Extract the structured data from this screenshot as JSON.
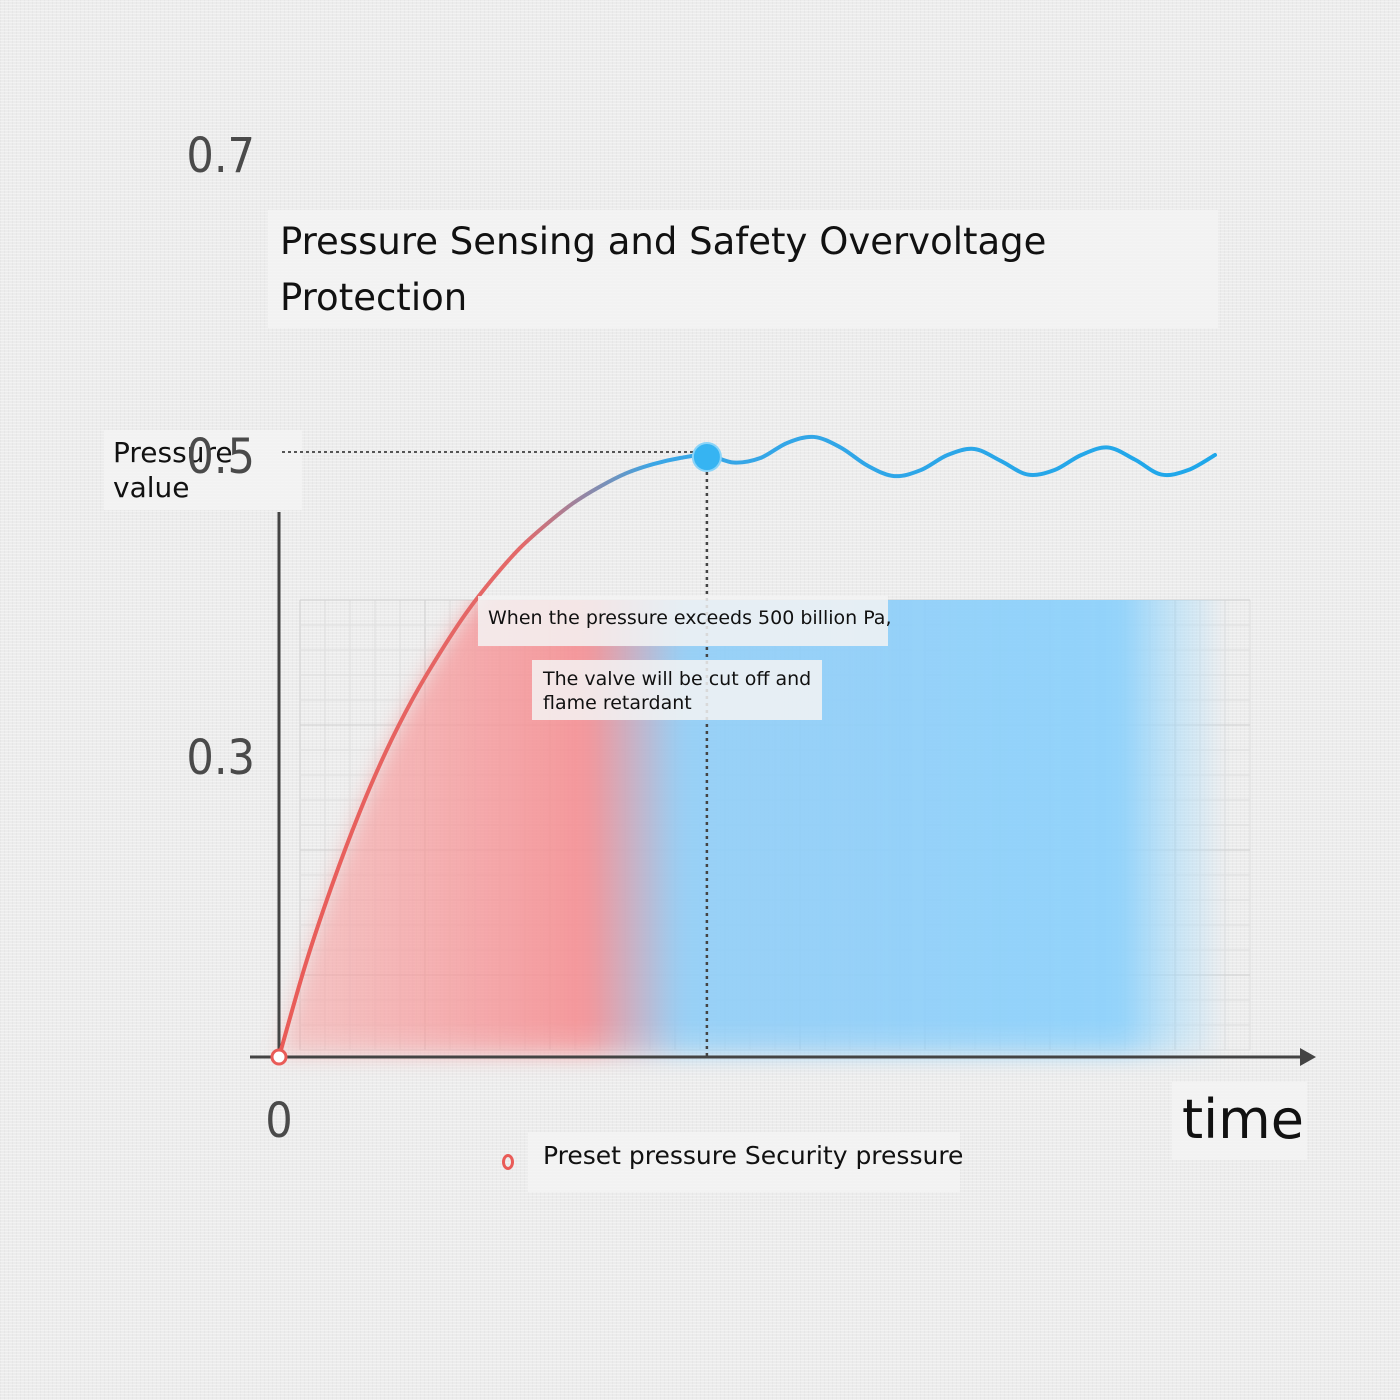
{
  "chart_data": {
    "type": "line",
    "title": "Pressure Sensing and Safety Overvoltage Protection",
    "ylabel": "Pressure value",
    "xlabel": "time",
    "y_ticks": [
      "0.7",
      "0.5",
      "0.3"
    ],
    "x_ticks": [
      "0"
    ],
    "ylim": [
      0.1,
      0.8
    ],
    "threshold": 0.5,
    "grid": true,
    "series": [
      {
        "x": [
          0,
          0.4,
          0.8,
          1.2,
          1.6,
          2.0,
          2.4,
          2.8,
          3.2,
          3.6,
          4.0,
          4.4,
          4.8,
          5.2,
          5.6,
          6.0,
          6.4,
          6.8,
          7.2,
          7.6,
          8.0,
          8.4,
          8.8,
          9.2,
          9.6,
          10.0,
          10.4,
          10.8,
          11.2,
          11.6,
          12.0,
          12.4,
          12.8,
          13.2,
          13.6,
          14.0
        ],
        "values": [
          0.1,
          0.162,
          0.215,
          0.262,
          0.303,
          0.338,
          0.368,
          0.395,
          0.418,
          0.438,
          0.454,
          0.468,
          0.479,
          0.488,
          0.494,
          0.498,
          0.5,
          0.495,
          0.498,
          0.508,
          0.512,
          0.505,
          0.493,
          0.486,
          0.49,
          0.5,
          0.504,
          0.496,
          0.487,
          0.49,
          0.5,
          0.505,
          0.497,
          0.487,
          0.49,
          0.5
        ]
      }
    ],
    "cutoff_x": 6.4,
    "annotations": [
      "When the pressure exceeds 500 billion Pa,",
      "The valve will be cut off and flame retardant"
    ],
    "legend": [
      {
        "marker": "open-circle",
        "color": "#e95b57",
        "label": "Preset pressure Security pressure"
      }
    ],
    "colors": {
      "rise": "#e95b57",
      "stable": "#1ea7ea",
      "grid": "#d4d4d4",
      "axis": "#444444"
    }
  }
}
